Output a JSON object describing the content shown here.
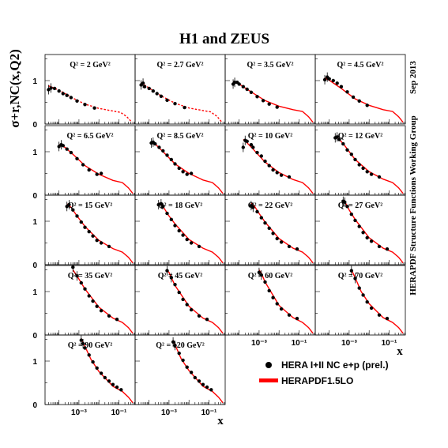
{
  "chart_data": {
    "type": "scatter",
    "title": "H1 and ZEUS",
    "ylabel": "σ+r,NC(x,Q2)",
    "xlabel": "x",
    "side_label_top": "Sep 2013",
    "side_label_bottom": "HERAPDF Structure Functions Working Group",
    "xscale": "log",
    "xlim": [
      2e-05,
      0.65
    ],
    "ylim": [
      0,
      1.6
    ],
    "yticks": [
      "0",
      "1"
    ],
    "xticks": [
      "10-3",
      "10-1"
    ],
    "legend": [
      {
        "name": "HERA I+II NC e+p (prel.)",
        "marker": "circle",
        "color": "#000000"
      },
      {
        "name": "HERAPDF1.5LO",
        "marker": "line",
        "color": "#ff0000"
      }
    ],
    "colors": {
      "data": "#000000",
      "fit": "#ff0000"
    },
    "panels": [
      {
        "label": "Q2 = 2 GeV2",
        "x": [
          3e-05,
          4e-05,
          6e-05,
          0.0001,
          0.00016,
          0.00025,
          0.0004,
          0.0008,
          0.002,
          0.006
        ],
        "y": [
          0.79,
          0.83,
          0.82,
          0.76,
          0.7,
          0.66,
          0.61,
          0.53,
          0.45,
          0.37
        ],
        "fit_x": [
          3e-05,
          0.0001,
          0.0004,
          0.002,
          0.01,
          0.05,
          0.12,
          0.25,
          0.45
        ],
        "fit_y": [
          0.88,
          0.78,
          0.62,
          0.46,
          0.36,
          0.3,
          0.27,
          0.17,
          0.04
        ],
        "fit_style": "dashed"
      },
      {
        "label": "Q2 = 2.7 GeV2",
        "x": [
          4e-05,
          5e-05,
          6e-05,
          0.0001,
          0.00016,
          0.00025,
          0.0004,
          0.0008,
          0.002,
          0.006
        ],
        "y": [
          0.9,
          0.94,
          0.86,
          0.82,
          0.76,
          0.7,
          0.64,
          0.55,
          0.47,
          0.38
        ],
        "fit_x": [
          4e-05,
          0.0001,
          0.0004,
          0.002,
          0.01,
          0.05,
          0.12,
          0.25,
          0.45
        ],
        "fit_y": [
          0.95,
          0.83,
          0.65,
          0.48,
          0.37,
          0.31,
          0.28,
          0.18,
          0.04
        ],
        "fit_style": "dashed"
      },
      {
        "label": "Q2 = 3.5 GeV2",
        "x": [
          5e-05,
          6e-05,
          8e-05,
          0.0001,
          0.00016,
          0.00025,
          0.0004,
          0.0008,
          0.0016,
          0.0032,
          0.008
        ],
        "y": [
          0.92,
          0.96,
          0.96,
          0.92,
          0.86,
          0.8,
          0.73,
          0.63,
          0.54,
          0.46,
          0.39
        ],
        "fit_x": [
          5e-05,
          0.0001,
          0.0004,
          0.002,
          0.01,
          0.05,
          0.15,
          0.3,
          0.5
        ],
        "fit_y": [
          0.98,
          0.92,
          0.74,
          0.54,
          0.41,
          0.33,
          0.29,
          0.17,
          0.04
        ],
        "fit_style": "solid"
      },
      {
        "label": "Q2 = 4.5 GeV2",
        "x": [
          6e-05,
          8e-05,
          0.0001,
          0.00016,
          0.00025,
          0.0004,
          0.0008,
          0.0016,
          0.0032,
          0.008
        ],
        "y": [
          1.02,
          1.08,
          1.04,
          1.0,
          0.94,
          0.86,
          0.74,
          0.62,
          0.53,
          0.43
        ],
        "fit_x": [
          6e-05,
          0.0001,
          0.0004,
          0.002,
          0.01,
          0.05,
          0.15,
          0.3,
          0.5
        ],
        "fit_y": [
          1.06,
          1.01,
          0.82,
          0.58,
          0.43,
          0.33,
          0.29,
          0.17,
          0.04
        ],
        "fit_style": "solid"
      },
      {
        "label": "Q2 = 6.5 GeV2",
        "x": [
          0.0001,
          0.00013,
          0.00016,
          0.00025,
          0.0004,
          0.0008,
          0.0016,
          0.0032,
          0.008,
          0.013
        ],
        "y": [
          1.12,
          1.16,
          1.14,
          1.06,
          0.98,
          0.84,
          0.7,
          0.58,
          0.48,
          0.5
        ],
        "fit_x": [
          0.0001,
          0.0002,
          0.0005,
          0.002,
          0.01,
          0.05,
          0.15,
          0.3,
          0.5
        ],
        "fit_y": [
          1.16,
          1.1,
          0.94,
          0.68,
          0.48,
          0.34,
          0.29,
          0.17,
          0.04
        ],
        "fit_style": "solid"
      },
      {
        "label": "Q2 = 8.5 GeV2",
        "x": [
          0.00013,
          0.00016,
          0.0002,
          0.00032,
          0.0005,
          0.0008,
          0.0013,
          0.002,
          0.0032,
          0.005,
          0.008,
          0.013
        ],
        "y": [
          1.2,
          1.22,
          1.18,
          1.1,
          1.02,
          0.92,
          0.82,
          0.72,
          0.62,
          0.54,
          0.48,
          0.5
        ],
        "fit_x": [
          0.00013,
          0.0002,
          0.0005,
          0.002,
          0.01,
          0.05,
          0.15,
          0.3,
          0.5
        ],
        "fit_y": [
          1.22,
          1.18,
          1.0,
          0.72,
          0.5,
          0.35,
          0.29,
          0.17,
          0.04
        ],
        "fit_style": "solid"
      },
      {
        "label": "Q2 = 10 GeV2",
        "x": [
          0.00016,
          0.0002,
          0.00025,
          0.0004,
          0.0005,
          0.0008,
          0.0013,
          0.002,
          0.0032,
          0.005,
          0.008,
          0.013,
          0.032
        ],
        "y": [
          1.1,
          1.26,
          1.24,
          1.16,
          1.1,
          0.98,
          0.9,
          0.78,
          0.68,
          0.58,
          0.52,
          0.46,
          0.42
        ],
        "fit_x": [
          0.00016,
          0.0002,
          0.0005,
          0.002,
          0.01,
          0.05,
          0.15,
          0.3,
          0.5
        ],
        "fit_y": [
          1.28,
          1.25,
          1.06,
          0.76,
          0.52,
          0.36,
          0.29,
          0.17,
          0.04
        ],
        "fit_style": "solid"
      },
      {
        "label": "Q2 = 12 GeV2",
        "x": [
          0.0002,
          0.00025,
          0.00032,
          0.0005,
          0.0008,
          0.0013,
          0.002,
          0.0032,
          0.005,
          0.008,
          0.013,
          0.032
        ],
        "y": [
          1.32,
          1.34,
          1.28,
          1.18,
          1.04,
          0.94,
          0.82,
          0.7,
          0.62,
          0.54,
          0.48,
          0.42
        ],
        "fit_x": [
          0.0002,
          0.0003,
          0.0006,
          0.002,
          0.01,
          0.05,
          0.15,
          0.3,
          0.5
        ],
        "fit_y": [
          1.34,
          1.3,
          1.14,
          0.82,
          0.54,
          0.37,
          0.29,
          0.17,
          0.04
        ],
        "fit_style": "solid"
      },
      {
        "label": "Q2 = 15 GeV2",
        "x": [
          0.00025,
          0.00032,
          0.0005,
          0.0008,
          0.0013,
          0.002,
          0.0032,
          0.005,
          0.008,
          0.013,
          0.032
        ],
        "y": [
          1.34,
          1.38,
          1.26,
          1.12,
          0.98,
          0.86,
          0.76,
          0.66,
          0.56,
          0.5,
          0.42
        ],
        "fit_x": [
          0.00025,
          0.0004,
          0.0008,
          0.002,
          0.01,
          0.05,
          0.15,
          0.3,
          0.5
        ],
        "fit_y": [
          1.4,
          1.32,
          1.12,
          0.88,
          0.56,
          0.37,
          0.29,
          0.17,
          0.04
        ],
        "fit_style": "solid"
      },
      {
        "label": "Q2 = 18 GeV2",
        "x": [
          0.0003,
          0.0004,
          0.0005,
          0.0008,
          0.0013,
          0.002,
          0.0032,
          0.005,
          0.008,
          0.013,
          0.032
        ],
        "y": [
          1.38,
          1.4,
          1.34,
          1.18,
          1.04,
          0.9,
          0.78,
          0.68,
          0.58,
          0.5,
          0.42
        ],
        "fit_x": [
          0.0003,
          0.0005,
          0.001,
          0.002,
          0.01,
          0.05,
          0.15,
          0.3,
          0.5
        ],
        "fit_y": [
          1.42,
          1.34,
          1.12,
          0.94,
          0.58,
          0.38,
          0.29,
          0.17,
          0.04
        ],
        "fit_style": "solid"
      },
      {
        "label": "Q2 = 22 GeV2",
        "x": [
          0.0004,
          0.0005,
          0.0008,
          0.0013,
          0.002,
          0.0032,
          0.005,
          0.008,
          0.013,
          0.032,
          0.08
        ],
        "y": [
          1.36,
          1.32,
          1.22,
          1.08,
          0.96,
          0.84,
          0.72,
          0.6,
          0.52,
          0.42,
          0.36
        ],
        "fit_x": [
          0.0004,
          0.0006,
          0.001,
          0.002,
          0.01,
          0.05,
          0.15,
          0.3,
          0.5
        ],
        "fit_y": [
          1.42,
          1.34,
          1.18,
          0.98,
          0.6,
          0.38,
          0.29,
          0.17,
          0.04
        ],
        "fit_style": "solid"
      },
      {
        "label": "Q2 = 27 GeV2",
        "x": [
          0.0005,
          0.0006,
          0.0008,
          0.0013,
          0.002,
          0.0032,
          0.005,
          0.008,
          0.013,
          0.032,
          0.08
        ],
        "y": [
          1.46,
          1.44,
          1.34,
          1.16,
          1.02,
          0.88,
          0.74,
          0.62,
          0.54,
          0.42,
          0.36
        ],
        "fit_x": [
          0.0005,
          0.0007,
          0.001,
          0.002,
          0.01,
          0.05,
          0.15,
          0.3,
          0.5
        ],
        "fit_y": [
          1.46,
          1.4,
          1.26,
          1.04,
          0.62,
          0.38,
          0.29,
          0.17,
          0.04
        ],
        "fit_style": "solid"
      },
      {
        "label": "Q2 = 35 GeV2",
        "x": [
          0.0005,
          0.0008,
          0.0013,
          0.002,
          0.0032,
          0.005,
          0.008,
          0.013,
          0.032,
          0.08
        ],
        "y": [
          1.56,
          1.36,
          1.2,
          1.06,
          0.9,
          0.78,
          0.66,
          0.56,
          0.44,
          0.36
        ],
        "fit_x": [
          0.0005,
          0.0008,
          0.002,
          0.01,
          0.05,
          0.15,
          0.3,
          0.5
        ],
        "fit_y": [
          1.5,
          1.36,
          1.06,
          0.64,
          0.39,
          0.29,
          0.17,
          0.04
        ],
        "fit_style": "solid"
      },
      {
        "label": "Q2 = 45 GeV2",
        "x": [
          0.0008,
          0.0013,
          0.002,
          0.0032,
          0.005,
          0.008,
          0.013,
          0.032,
          0.08
        ],
        "y": [
          1.48,
          1.32,
          1.16,
          0.98,
          0.82,
          0.7,
          0.58,
          0.44,
          0.36
        ],
        "fit_x": [
          0.0008,
          0.001,
          0.002,
          0.01,
          0.05,
          0.15,
          0.3,
          0.5
        ],
        "fit_y": [
          1.5,
          1.44,
          1.14,
          0.66,
          0.39,
          0.29,
          0.17,
          0.04
        ],
        "fit_style": "solid"
      },
      {
        "label": "Q2 = 60 GeV2",
        "x": [
          0.001,
          0.0013,
          0.002,
          0.0032,
          0.005,
          0.008,
          0.013,
          0.032,
          0.08
        ],
        "y": [
          1.44,
          1.38,
          1.22,
          1.02,
          0.86,
          0.72,
          0.6,
          0.46,
          0.38
        ],
        "fit_x": [
          0.001,
          0.0013,
          0.002,
          0.01,
          0.05,
          0.15,
          0.3,
          0.5
        ],
        "fit_y": [
          1.5,
          1.42,
          1.22,
          0.68,
          0.4,
          0.29,
          0.17,
          0.04
        ],
        "fit_style": "solid"
      },
      {
        "label": "Q2 = 70 GeV2",
        "x": [
          0.0013,
          0.002,
          0.0032,
          0.005,
          0.008,
          0.013,
          0.032,
          0.08
        ],
        "y": [
          1.48,
          1.3,
          1.08,
          0.92,
          0.76,
          0.62,
          0.46,
          0.38
        ],
        "fit_x": [
          0.0013,
          0.002,
          0.004,
          0.01,
          0.05,
          0.15,
          0.3,
          0.5
        ],
        "fit_y": [
          1.5,
          1.32,
          1.0,
          0.72,
          0.4,
          0.29,
          0.17,
          0.04
        ],
        "fit_style": "solid"
      },
      {
        "label": "Q2 = 90 GeV2",
        "x": [
          0.0013,
          0.0016,
          0.002,
          0.0032,
          0.005,
          0.008,
          0.013,
          0.02,
          0.032,
          0.05,
          0.08,
          0.13
        ],
        "y": [
          1.48,
          1.4,
          1.3,
          1.14,
          0.98,
          0.84,
          0.72,
          0.62,
          0.54,
          0.46,
          0.4,
          0.34
        ],
        "fit_x": [
          0.0013,
          0.002,
          0.004,
          0.01,
          0.05,
          0.15,
          0.3,
          0.5
        ],
        "fit_y": [
          1.52,
          1.34,
          1.04,
          0.76,
          0.42,
          0.3,
          0.17,
          0.04
        ],
        "fit_style": "solid"
      },
      {
        "label": "Q2 = 120 GeV2",
        "x": [
          0.0016,
          0.002,
          0.0032,
          0.005,
          0.008,
          0.013,
          0.02,
          0.032,
          0.05,
          0.08,
          0.13
        ],
        "y": [
          1.44,
          1.36,
          1.18,
          1.02,
          0.86,
          0.74,
          0.62,
          0.54,
          0.46,
          0.4,
          0.34
        ],
        "fit_x": [
          0.0016,
          0.002,
          0.004,
          0.01,
          0.05,
          0.15,
          0.3,
          0.5
        ],
        "fit_y": [
          1.48,
          1.38,
          1.06,
          0.78,
          0.42,
          0.3,
          0.17,
          0.04
        ],
        "fit_style": "solid"
      }
    ]
  }
}
